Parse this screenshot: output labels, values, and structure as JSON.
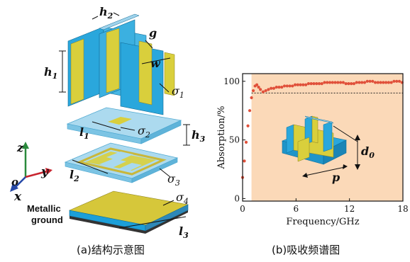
{
  "panel_a": {
    "caption": "(a)结构示意图",
    "dim_labels": {
      "h2": "h",
      "h2_sub": "2",
      "g": "g",
      "w": "w",
      "h1": "h",
      "h1_sub": "1",
      "sigma1": "σ",
      "sigma1_sub": "1",
      "l1": "l",
      "l1_sub": "1",
      "sigma2": "σ",
      "sigma2_sub": "2",
      "h3": "h",
      "h3_sub": "3",
      "l2": "l",
      "l2_sub": "2",
      "sigma3": "σ",
      "sigma3_sub": "3",
      "sigma4": "σ",
      "sigma4_sub": "4",
      "l3": "l",
      "l3_sub": "3"
    },
    "axes": {
      "z": "z",
      "y": "y",
      "x": "x",
      "o": "o"
    },
    "ground_label_line1": "Metallic",
    "ground_label_line2": "ground",
    "colors": {
      "blue": "#2aa7dc",
      "yellow": "#d9cf3c",
      "slab": "#9fd3ec",
      "ground_top": "#d6c73a",
      "ground_side": "#1c9fd8"
    }
  },
  "panel_b": {
    "caption": "(b)吸收频谱图",
    "inset_labels": {
      "d0": "d",
      "d0_sub": "0",
      "p": "p"
    },
    "colors": {
      "band": "#fbd9b8",
      "dots": "#e0503a"
    }
  },
  "chart_data": {
    "type": "scatter",
    "xlabel": "Frequency/GHz",
    "ylabel": "Absorption/%",
    "xlim": [
      0,
      18
    ],
    "ylim": [
      0,
      100
    ],
    "xticks": [
      0,
      6,
      12,
      18
    ],
    "yticks": [
      0,
      50,
      100
    ],
    "reference_line_y": 90,
    "highlight_band_x": [
      1,
      18
    ],
    "series": [
      {
        "x": [
          0.0,
          0.2,
          0.4,
          0.6,
          0.8,
          1.0,
          1.2,
          1.4,
          1.6,
          1.8,
          2.0,
          2.3,
          2.6,
          2.9,
          3.2,
          3.5,
          3.8,
          4.1,
          4.4,
          4.7,
          5.0,
          5.3,
          5.6,
          5.9,
          6.2,
          6.5,
          6.8,
          7.1,
          7.4,
          7.7,
          8.0,
          8.3,
          8.6,
          8.9,
          9.2,
          9.5,
          9.8,
          10.1,
          10.4,
          10.7,
          11.0,
          11.3,
          11.6,
          11.9,
          12.2,
          12.5,
          12.8,
          13.1,
          13.4,
          13.7,
          14.0,
          14.3,
          14.6,
          14.9,
          15.2,
          15.5,
          15.8,
          16.1,
          16.4,
          16.7,
          17.0,
          17.3,
          17.6,
          17.9
        ],
        "y": [
          18,
          32,
          48,
          62,
          75,
          86,
          92,
          96,
          97,
          95,
          93,
          91,
          92,
          93,
          94,
          94,
          95,
          95,
          95,
          96,
          96,
          96,
          96,
          97,
          97,
          97,
          97,
          97,
          98,
          98,
          98,
          98,
          98,
          98,
          99,
          99,
          99,
          99,
          99,
          99,
          99,
          99,
          98,
          98,
          98,
          98,
          99,
          99,
          99,
          99,
          100,
          100,
          100,
          99,
          99,
          99,
          99,
          99,
          99,
          99,
          100,
          100,
          100,
          99
        ]
      }
    ]
  }
}
